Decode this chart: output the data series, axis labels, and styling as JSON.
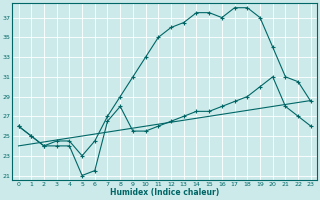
{
  "xlabel": "Humidex (Indice chaleur)",
  "bg_color": "#cceaea",
  "line_color": "#006666",
  "grid_color": "#b8d8d8",
  "xlim": [
    -0.5,
    23.5
  ],
  "ylim": [
    20.5,
    38.5
  ],
  "xticks": [
    0,
    1,
    2,
    3,
    4,
    5,
    6,
    7,
    8,
    9,
    10,
    11,
    12,
    13,
    14,
    15,
    16,
    17,
    18,
    19,
    20,
    21,
    22,
    23
  ],
  "yticks": [
    21,
    23,
    25,
    27,
    29,
    31,
    33,
    35,
    37
  ],
  "line_zigzag_x": [
    0,
    1,
    2,
    3,
    4,
    5,
    6,
    7,
    8,
    9,
    10,
    11,
    12,
    13,
    14,
    15,
    16,
    17,
    18,
    19,
    20,
    21,
    22,
    23
  ],
  "line_zigzag_y": [
    26,
    25,
    24,
    24,
    24,
    21,
    21.5,
    26.5,
    28,
    25.5,
    25.5,
    26,
    26.5,
    27,
    27.5,
    27.5,
    28,
    28.5,
    29,
    30,
    31,
    28,
    27,
    26
  ],
  "line_upper_x": [
    0,
    1,
    2,
    3,
    4,
    5,
    6,
    7,
    8,
    9,
    10,
    11,
    12,
    13,
    14,
    15,
    16,
    17,
    18,
    19,
    20,
    21,
    22,
    23
  ],
  "line_upper_y": [
    26,
    25,
    24,
    24.5,
    24.5,
    23,
    24.5,
    27,
    29,
    31,
    33,
    35,
    36,
    36.5,
    37.5,
    37.5,
    37,
    38,
    38,
    37,
    34,
    31,
    30.5,
    28.5
  ],
  "line_diag_x": [
    0,
    1,
    2,
    3,
    4,
    5,
    6,
    7,
    8,
    9,
    10,
    11,
    12,
    13,
    14,
    15,
    16,
    17,
    18,
    19,
    20,
    21,
    22,
    23
  ],
  "line_diag_y": [
    24,
    24.2,
    24.4,
    24.6,
    24.8,
    25.0,
    25.2,
    25.4,
    25.6,
    25.8,
    26.0,
    26.2,
    26.4,
    26.6,
    26.8,
    27.0,
    27.2,
    27.4,
    27.6,
    27.8,
    28.0,
    28.2,
    28.4,
    28.6
  ]
}
